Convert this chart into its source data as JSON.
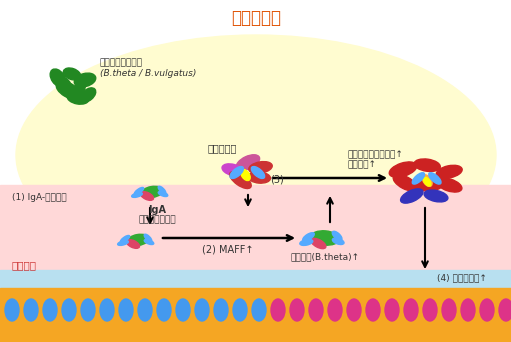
{
  "title": "腸管内容物",
  "title_color": "#e05000",
  "bg_color": "#ffffff",
  "ellipse_bg_color": "#fffcd0",
  "mucus_color": "#ffd8d8",
  "submucosa_color": "#b8e0f0",
  "epithelium_color": "#f5a623",
  "cell_blue": "#4499ee",
  "cell_pink": "#dd3388",
  "green_dark": "#228822",
  "green_light": "#44bb44",
  "red_dark": "#cc2222",
  "blue_ab": "#55aaff",
  "pink_bac": "#dd4466",
  "purple_bac": "#cc55cc",
  "yellow_bac": "#ffff00",
  "navy_bac": "#3333cc",
  "orange_bac": "#ff8833",
  "label_title": "腸管内容物",
  "label_bacteroides_1": "バクテロイデス属",
  "label_bacteroides_2": "(B.theta / B.vulgatus)",
  "label_flora": "大腸細菌叢",
  "label_clostridium_1": "クロストリジウム属↑",
  "label_clostridium_2": "代謝機能↑",
  "label_step1": "(1) IgA-細菌結合",
  "label_iga": "IgA",
  "label_interaction": "細菌間相互作用",
  "label_maff": "(2) MAFF↑",
  "label_metabolism": "代謝機能(B.theta)↑",
  "label_enteritis": "(4) 腸炎抵抗性↑",
  "label_mucus": "大腸粘液",
  "label_step3": "(3)"
}
